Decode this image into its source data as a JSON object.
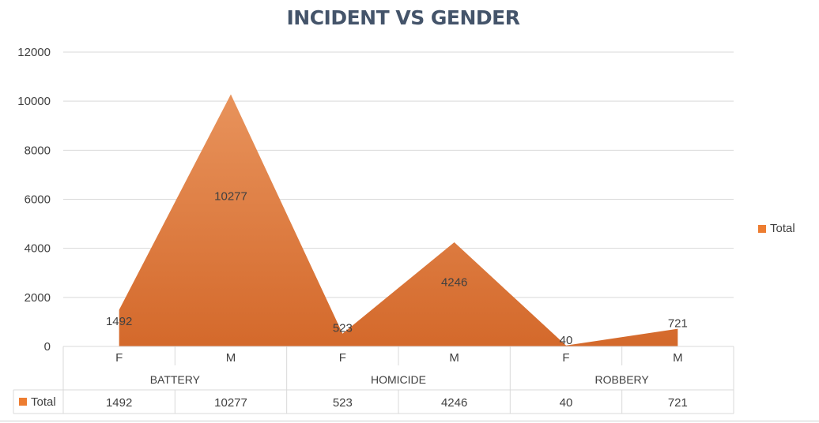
{
  "chart_data": {
    "type": "area",
    "title": "INCIDENT VS GENDER",
    "categories": [
      {
        "group": "BATTERY",
        "gender": "F"
      },
      {
        "group": "BATTERY",
        "gender": "M"
      },
      {
        "group": "HOMICIDE",
        "gender": "F"
      },
      {
        "group": "HOMICIDE",
        "gender": "M"
      },
      {
        "group": "ROBBERY",
        "gender": "F"
      },
      {
        "group": "ROBBERY",
        "gender": "M"
      }
    ],
    "groups": [
      "BATTERY",
      "HOMICIDE",
      "ROBBERY"
    ],
    "series": [
      {
        "name": "Total",
        "values": [
          1492,
          10277,
          523,
          4246,
          40,
          721
        ]
      }
    ],
    "ylim": [
      0,
      12000
    ],
    "yticks": [
      "0",
      "2000",
      "4000",
      "6000",
      "8000",
      "10000",
      "12000"
    ],
    "grid": true,
    "legend_position": "right",
    "data_table": true,
    "colors": {
      "fill_top": "#e8935c",
      "fill_bottom": "#d4692b",
      "legend": "#ed7d31",
      "grid": "#d9d9d9",
      "text": "#404040"
    }
  }
}
